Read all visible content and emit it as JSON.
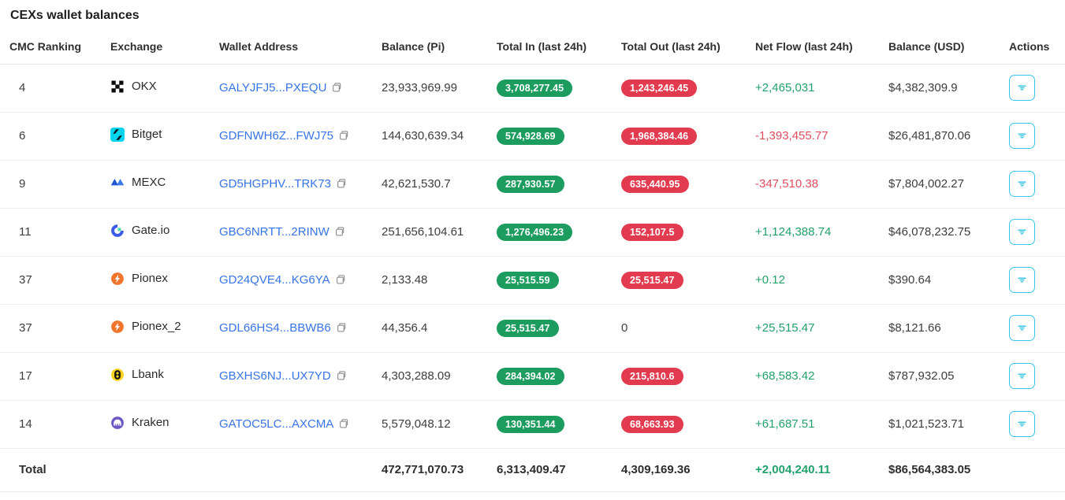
{
  "title": "CEXs wallet balances",
  "table": {
    "columns": [
      "CMC Ranking",
      "Exchange",
      "Wallet Address",
      "Balance (Pi)",
      "Total In (last 24h)",
      "Total Out (last 24h)",
      "Net Flow (last 24h)",
      "Balance (USD)",
      "Actions"
    ],
    "rows": [
      {
        "rank": "4",
        "exchange": "OKX",
        "logo": "okx-logo",
        "address": "GALYJFJ5...PXEQU",
        "balance_pi": "23,933,969.99",
        "total_in": "3,708,277.45",
        "total_out": "1,243,246.45",
        "total_out_style": "pill",
        "net_flow": "+2,465,031",
        "balance_usd": "$4,382,309.9"
      },
      {
        "rank": "6",
        "exchange": "Bitget",
        "logo": "bitget-logo",
        "address": "GDFNWH6Z...FWJ75",
        "balance_pi": "144,630,639.34",
        "total_in": "574,928.69",
        "total_out": "1,968,384.46",
        "total_out_style": "pill",
        "net_flow": "-1,393,455.77",
        "balance_usd": "$26,481,870.06"
      },
      {
        "rank": "9",
        "exchange": "MEXC",
        "logo": "mexc-logo",
        "address": "GD5HGPHV...TRK73",
        "balance_pi": "42,621,530.7",
        "total_in": "287,930.57",
        "total_out": "635,440.95",
        "total_out_style": "pill",
        "net_flow": "-347,510.38",
        "balance_usd": "$7,804,002.27"
      },
      {
        "rank": "11",
        "exchange": "Gate.io",
        "logo": "gate-logo",
        "address": "GBC6NRTT...2RINW",
        "balance_pi": "251,656,104.61",
        "total_in": "1,276,496.23",
        "total_out": "152,107.5",
        "total_out_style": "pill",
        "net_flow": "+1,124,388.74",
        "balance_usd": "$46,078,232.75"
      },
      {
        "rank": "37",
        "exchange": "Pionex",
        "logo": "pionex-logo",
        "address": "GD24QVE4...KG6YA",
        "balance_pi": "2,133.48",
        "total_in": "25,515.59",
        "total_out": "25,515.47",
        "total_out_style": "pill",
        "net_flow": "+0.12",
        "balance_usd": "$390.64"
      },
      {
        "rank": "37",
        "exchange": "Pionex_2",
        "logo": "pionex-logo",
        "address": "GDL66HS4...BBWB6",
        "balance_pi": "44,356.4",
        "total_in": "25,515.47",
        "total_out": "0",
        "total_out_style": "plain",
        "net_flow": "+25,515.47",
        "balance_usd": "$8,121.66"
      },
      {
        "rank": "17",
        "exchange": "Lbank",
        "logo": "lbank-logo",
        "address": "GBXHS6NJ...UX7YD",
        "balance_pi": "4,303,288.09",
        "total_in": "284,394.02",
        "total_out": "215,810.6",
        "total_out_style": "pill",
        "net_flow": "+68,583.42",
        "balance_usd": "$787,932.05"
      },
      {
        "rank": "14",
        "exchange": "Kraken",
        "logo": "kraken-logo",
        "address": "GATOC5LC...AXCMA",
        "balance_pi": "5,579,048.12",
        "total_in": "130,351.44",
        "total_out": "68,663.93",
        "total_out_style": "pill",
        "net_flow": "+61,687.51",
        "balance_usd": "$1,021,523.71"
      }
    ],
    "total_row": {
      "label": "Total",
      "balance_pi": "472,771,070.73",
      "total_in": "6,313,409.47",
      "total_out": "4,309,169.36",
      "net_flow": "+2,004,240.11",
      "balance_usd": "$86,564,383.05"
    }
  },
  "icons": {
    "copy": "copy-icon",
    "action": "filter-lines-icon"
  },
  "colors": {
    "inflow_pill": "#1c9c5e",
    "outflow_pill": "#e23b50",
    "netflow_positive": "#21a26b",
    "netflow_negative": "#e24c5f",
    "link_blue": "#3674e8",
    "action_accent": "#3bc5ea"
  }
}
